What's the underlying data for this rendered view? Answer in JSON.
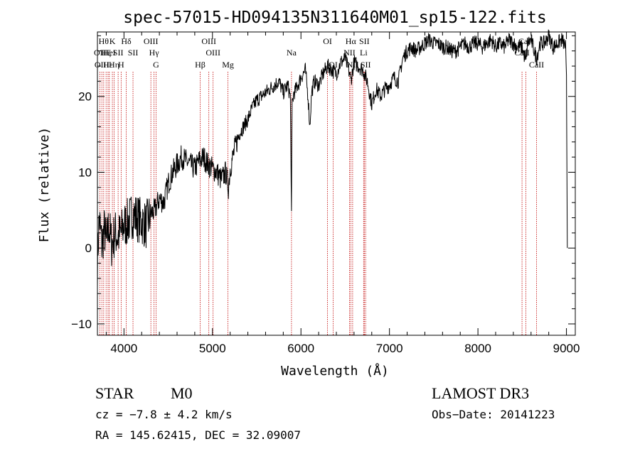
{
  "chart_data": {
    "type": "line",
    "title": "spec-57015-HD094135N311640M01_sp15-122.fits",
    "xlabel": "Wavelength (Å)",
    "ylabel": "Flux (relative)",
    "xlim": [
      3700,
      9100
    ],
    "ylim": [
      -11.5,
      28.5
    ],
    "xticks": [
      4000,
      5000,
      6000,
      7000,
      8000,
      9000
    ],
    "yticks": [
      -10,
      0,
      10,
      20
    ],
    "grid": false,
    "series": [
      {
        "x": [
          3700,
          3720,
          3750,
          3780,
          3800,
          3830,
          3860,
          3900,
          3930,
          3970,
          4000,
          4050,
          4100,
          4150,
          4200,
          4250,
          4300,
          4350,
          4400,
          4450,
          4500,
          4550,
          4600,
          4650,
          4700,
          4750,
          4800,
          4850,
          4900,
          4950,
          5000,
          5050,
          5100,
          5150,
          5180,
          5200,
          5250,
          5300,
          5350,
          5400,
          5450,
          5500,
          5550,
          5600,
          5650,
          5700,
          5750,
          5800,
          5850,
          5880,
          5893,
          5900,
          5920,
          5950,
          6000,
          6050,
          6080,
          6100,
          6120,
          6150,
          6200,
          6250,
          6300,
          6350,
          6400,
          6450,
          6500,
          6550,
          6563,
          6600,
          6650,
          6700,
          6750,
          6800,
          6850,
          6900,
          6950,
          7000,
          7050,
          7100,
          7150,
          7200,
          7250,
          7300,
          7350,
          7400,
          7450,
          7500,
          7550,
          7600,
          7650,
          7700,
          7750,
          7800,
          7850,
          7900,
          7950,
          8000,
          8050,
          8100,
          8150,
          8200,
          8250,
          8300,
          8350,
          8400,
          8450,
          8500,
          8542,
          8560,
          8600,
          8662,
          8700,
          8750,
          8800,
          8850,
          8900,
          8950,
          8990,
          9000,
          9010
        ],
        "y": [
          -2.0,
          4.0,
          0.5,
          2.5,
          0.5,
          3.0,
          0.5,
          2.0,
          1.5,
          2.0,
          3.0,
          3.5,
          4.5,
          4.0,
          3.5,
          3.0,
          4.5,
          5.0,
          6.5,
          6.0,
          8.5,
          10.0,
          11.0,
          12.0,
          11.5,
          11.0,
          10.5,
          11.5,
          12.0,
          11.0,
          10.5,
          10.0,
          9.0,
          10.0,
          8.0,
          10.5,
          13.0,
          15.0,
          16.0,
          17.0,
          18.5,
          19.5,
          20.0,
          20.5,
          21.0,
          21.5,
          22.0,
          20.5,
          21.5,
          20.0,
          4.5,
          19.0,
          20.5,
          21.0,
          22.5,
          23.5,
          20.0,
          16.0,
          20.5,
          22.0,
          21.5,
          23.0,
          24.0,
          23.5,
          23.0,
          24.5,
          25.0,
          23.0,
          22.0,
          24.5,
          24.0,
          23.5,
          22.0,
          19.0,
          21.0,
          20.0,
          21.0,
          21.5,
          22.5,
          22.0,
          25.0,
          26.0,
          26.5,
          26.0,
          26.5,
          27.0,
          27.5,
          27.0,
          27.0,
          26.5,
          26.5,
          26.0,
          26.0,
          26.5,
          27.0,
          26.5,
          27.0,
          27.0,
          26.5,
          27.0,
          27.5,
          26.5,
          27.0,
          26.5,
          27.5,
          27.0,
          26.5,
          26.5,
          24.5,
          27.0,
          27.5,
          25.0,
          27.0,
          27.0,
          28.0,
          26.5,
          27.0,
          27.5,
          26.5,
          22.0,
          0.0
        ]
      }
    ],
    "line_markers": [
      {
        "x": 3727,
        "label": "OII",
        "row": 1
      },
      {
        "x": 3750,
        "label": "OIII",
        "row": 2
      },
      {
        "x": 3771,
        "label": "Hθ",
        "row": 0
      },
      {
        "x": 3798,
        "label": "Hζ",
        "row": 1
      },
      {
        "x": 3820,
        "label": "Hε",
        "row": 2
      },
      {
        "x": 3835,
        "label": "HeI",
        "row": 1
      },
      {
        "x": 3869,
        "label": "K",
        "row": 0
      },
      {
        "x": 3889,
        "label": "Hη",
        "row": 2
      },
      {
        "x": 3934,
        "label": "SII",
        "row": 1
      },
      {
        "x": 3968,
        "label": "H",
        "row": 2
      },
      {
        "x": 4026,
        "label": "Hδ",
        "row": 0
      },
      {
        "x": 4102,
        "label": "SII",
        "row": 1
      },
      {
        "x": 4304,
        "label": "OIII",
        "row": 0
      },
      {
        "x": 4340,
        "label": "Hγ",
        "row": 1
      },
      {
        "x": 4363,
        "label": "G",
        "row": 2
      },
      {
        "x": 4861,
        "label": "Hβ",
        "row": 2
      },
      {
        "x": 4959,
        "label": "OIII",
        "row": 0
      },
      {
        "x": 5007,
        "label": "OIII",
        "row": 1
      },
      {
        "x": 5175,
        "label": "Mg",
        "row": 2
      },
      {
        "x": 5893,
        "label": "Na",
        "row": 1
      },
      {
        "x": 6300,
        "label": "OI",
        "row": 0
      },
      {
        "x": 6364,
        "label": "OI",
        "row": 2
      },
      {
        "x": 6548,
        "label": "NII",
        "row": 1
      },
      {
        "x": 6563,
        "label": "Hα",
        "row": 0
      },
      {
        "x": 6584,
        "label": "NII",
        "row": 2
      },
      {
        "x": 6708,
        "label": "Li",
        "row": 1
      },
      {
        "x": 6716,
        "label": "SII",
        "row": 0
      },
      {
        "x": 6731,
        "label": "SII",
        "row": 2
      },
      {
        "x": 8498,
        "label": "CaII",
        "row": 1
      },
      {
        "x": 8542,
        "label": "CaII",
        "row": 0
      },
      {
        "x": 8662,
        "label": "CaII",
        "row": 2
      }
    ]
  },
  "info": {
    "class_label": "STAR",
    "subclass": "M0",
    "survey": "LAMOST DR3",
    "velocity": "cz = −7.8 ± 4.2 km/s",
    "obs_date": "Obs−Date: 20141223",
    "coords": "RA = 145.62415, DEC =  32.09007"
  }
}
